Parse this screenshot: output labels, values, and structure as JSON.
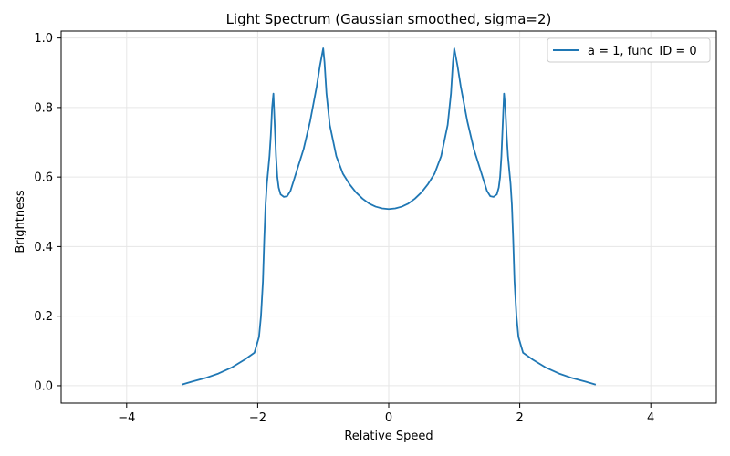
{
  "chart_data": {
    "type": "line",
    "title": "Light Spectrum (Gaussian smoothed, sigma=2)",
    "xlabel": "Relative Speed",
    "ylabel": "Brightness",
    "xlim": [
      -5,
      5
    ],
    "ylim": [
      -0.05,
      1.02
    ],
    "xticks": [
      -4,
      -2,
      0,
      2,
      4
    ],
    "xtick_labels": [
      "−4",
      "−2",
      "0",
      "2",
      "4"
    ],
    "yticks": [
      0.0,
      0.2,
      0.4,
      0.6,
      0.8,
      1.0
    ],
    "ytick_labels": [
      "0.0",
      "0.2",
      "0.4",
      "0.6",
      "0.8",
      "1.0"
    ],
    "grid": true,
    "legend_position": "top-right",
    "colors": {
      "series": "#1f77b4",
      "grid": "#e6e6e6",
      "axis": "#000000"
    },
    "series": [
      {
        "name": "a = 1, func_ID = 0",
        "x": [
          -3.16,
          -3.0,
          -2.8,
          -2.6,
          -2.4,
          -2.2,
          -2.05,
          -1.98,
          -1.95,
          -1.92,
          -1.9,
          -1.88,
          -1.86,
          -1.84,
          -1.82,
          -1.8,
          -1.78,
          -1.76,
          -1.74,
          -1.72,
          -1.7,
          -1.68,
          -1.65,
          -1.6,
          -1.55,
          -1.5,
          -1.45,
          -1.4,
          -1.3,
          -1.2,
          -1.1,
          -1.05,
          -1.02,
          -1.0,
          -0.98,
          -0.95,
          -0.9,
          -0.8,
          -0.7,
          -0.6,
          -0.5,
          -0.4,
          -0.3,
          -0.2,
          -0.1,
          0.0,
          0.1,
          0.2,
          0.3,
          0.4,
          0.5,
          0.6,
          0.7,
          0.8,
          0.9,
          0.95,
          0.98,
          1.0,
          1.02,
          1.05,
          1.1,
          1.2,
          1.3,
          1.4,
          1.45,
          1.5,
          1.55,
          1.6,
          1.65,
          1.68,
          1.7,
          1.72,
          1.74,
          1.76,
          1.78,
          1.8,
          1.82,
          1.84,
          1.86,
          1.88,
          1.9,
          1.92,
          1.95,
          1.98,
          2.05,
          2.2,
          2.4,
          2.6,
          2.8,
          3.0,
          3.16
        ],
        "y": [
          0.003,
          0.012,
          0.022,
          0.035,
          0.052,
          0.075,
          0.095,
          0.14,
          0.2,
          0.3,
          0.42,
          0.52,
          0.58,
          0.62,
          0.66,
          0.72,
          0.8,
          0.84,
          0.75,
          0.66,
          0.6,
          0.57,
          0.55,
          0.543,
          0.545,
          0.56,
          0.59,
          0.62,
          0.68,
          0.76,
          0.86,
          0.92,
          0.95,
          0.97,
          0.93,
          0.84,
          0.75,
          0.66,
          0.61,
          0.58,
          0.556,
          0.538,
          0.524,
          0.515,
          0.51,
          0.508,
          0.51,
          0.515,
          0.524,
          0.538,
          0.556,
          0.58,
          0.61,
          0.66,
          0.75,
          0.84,
          0.93,
          0.97,
          0.95,
          0.92,
          0.86,
          0.76,
          0.68,
          0.62,
          0.59,
          0.56,
          0.545,
          0.543,
          0.55,
          0.57,
          0.6,
          0.66,
          0.75,
          0.84,
          0.8,
          0.72,
          0.66,
          0.62,
          0.58,
          0.52,
          0.42,
          0.3,
          0.2,
          0.14,
          0.095,
          0.075,
          0.052,
          0.035,
          0.022,
          0.012,
          0.003
        ]
      }
    ]
  }
}
